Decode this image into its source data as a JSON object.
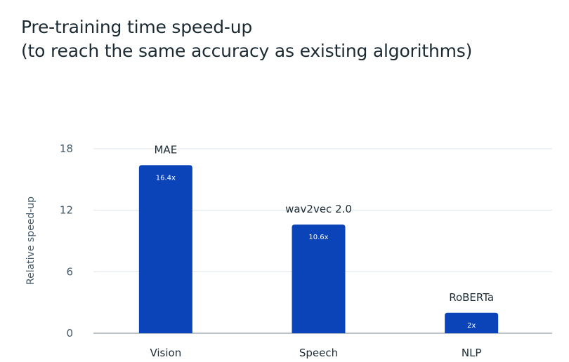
{
  "chart_data": {
    "type": "bar",
    "title": "Pre-training time speed-up",
    "subtitle": "(to reach the same accuracy as existing algorithms)",
    "xlabel": "",
    "ylabel": "Relative speed-up",
    "categories": [
      "Vision",
      "Speech",
      "NLP"
    ],
    "values": [
      16.4,
      10.6,
      2
    ],
    "bar_names": [
      "MAE",
      "wav2vec 2.0",
      "RoBERTa"
    ],
    "value_labels": [
      "16.4x",
      "10.6x",
      "2x"
    ],
    "yticks": [
      0,
      6,
      12,
      18
    ],
    "ytick_labels": [
      "0",
      "6",
      "12",
      "18"
    ],
    "ylim": [
      0,
      18
    ],
    "grid": true,
    "legend": "none",
    "colors": {
      "bar": "#0a44b8",
      "grid": "#dde3e8",
      "axis": "#a3aeb6"
    }
  }
}
